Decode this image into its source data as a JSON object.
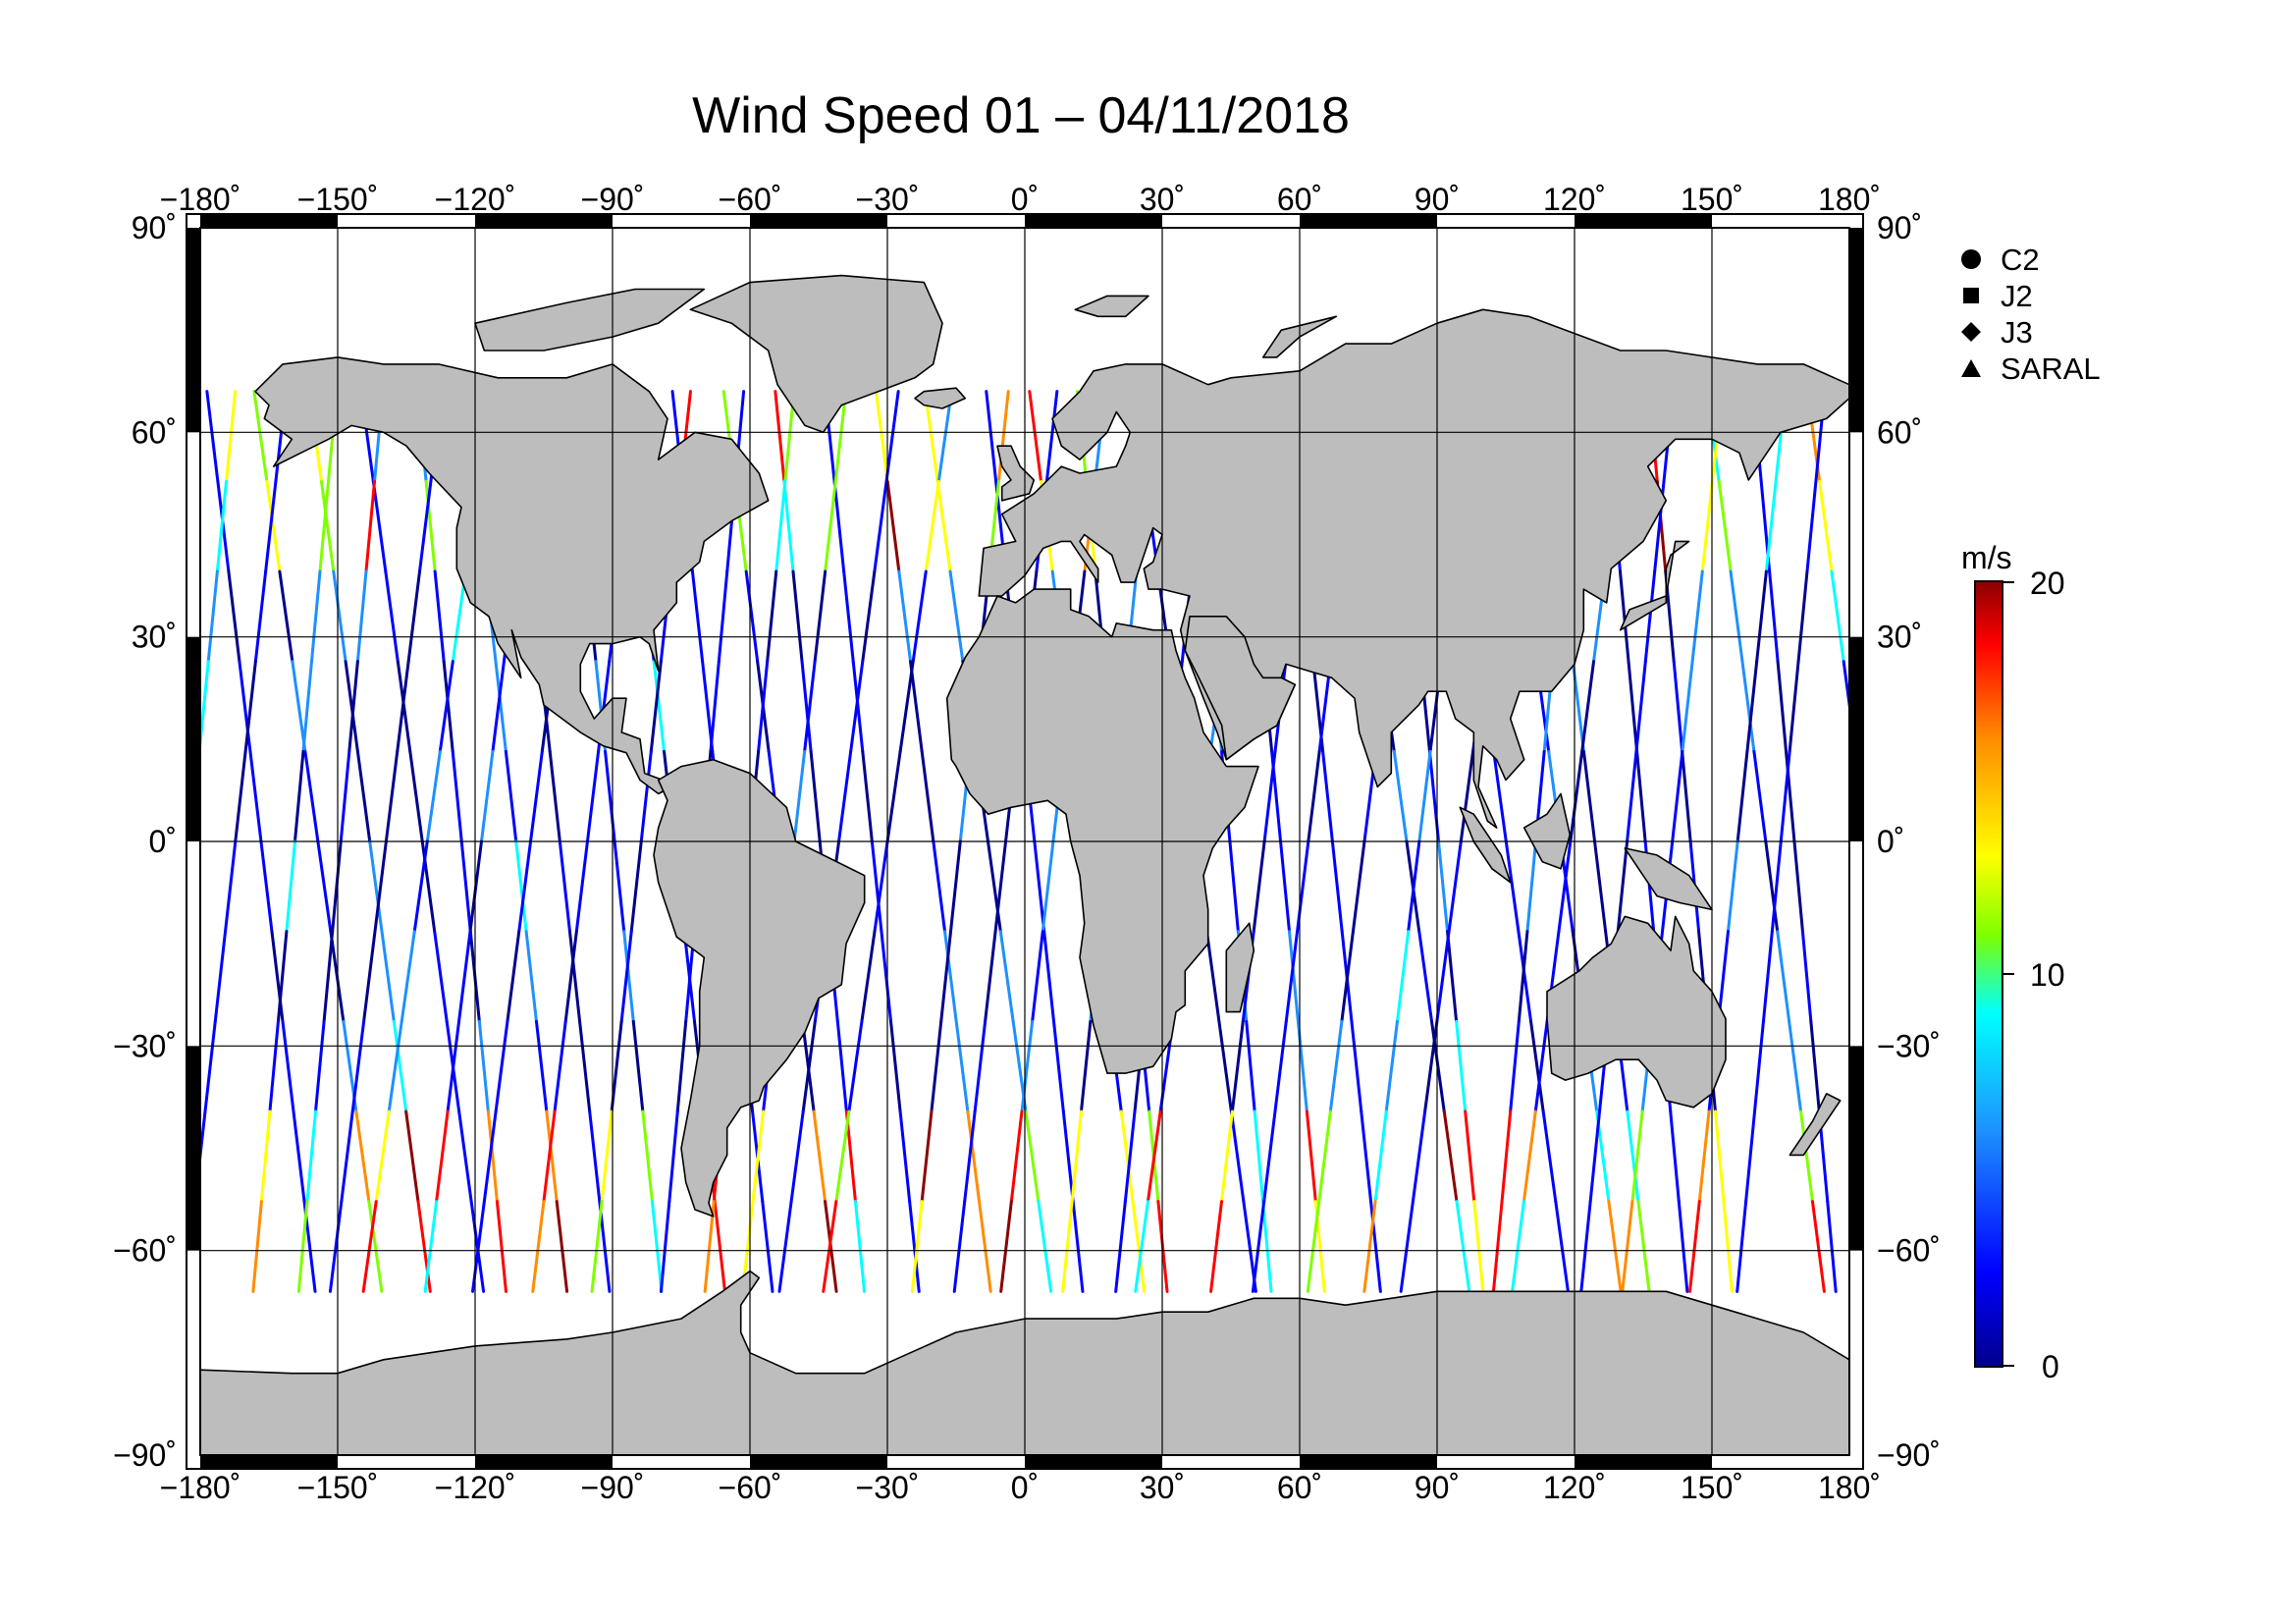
{
  "title": "Wind Speed 01 – 04/11/2018",
  "map": {
    "projection": "equirectangular",
    "lon_range": [
      -180,
      180
    ],
    "lat_range": [
      -90,
      90
    ],
    "lon_ticks": [
      "−180˚",
      "−150˚",
      "−120˚",
      "−90˚",
      "−60˚",
      "−30˚",
      "0˚",
      "30˚",
      "60˚",
      "90˚",
      "120˚",
      "150˚",
      "180˚"
    ],
    "lat_ticks_left": [
      "90˚",
      "60˚",
      "30˚",
      "0˚",
      "−30˚",
      "−60˚",
      "−90˚"
    ],
    "lat_ticks_right": [
      "90˚",
      "60˚",
      "30˚",
      "0˚",
      "−30˚",
      "−60˚",
      "−90˚"
    ],
    "grid": true,
    "land_color": "#bdbdbd",
    "ocean_color": "#ffffff"
  },
  "legend": {
    "items": [
      {
        "label": "C2",
        "icon": "circle-icon"
      },
      {
        "label": "J2",
        "icon": "square-icon"
      },
      {
        "label": "J3",
        "icon": "diamond-icon"
      },
      {
        "label": "SARAL",
        "icon": "triangle-icon"
      }
    ]
  },
  "colorbar": {
    "unit": "m/s",
    "min": 0,
    "max": 20,
    "tick_labels": [
      "20",
      "10",
      "0"
    ],
    "colors": [
      "#8b0000",
      "#ff0000",
      "#ff8c00",
      "#ffff00",
      "#7fff00",
      "#00ffff",
      "#1e90ff",
      "#0000ff",
      "#00008b"
    ]
  },
  "chart_data": {
    "type": "map",
    "variable": "wind speed",
    "unit": "m/s",
    "satellites": [
      "C2",
      "J2",
      "J3",
      "SARAL"
    ],
    "value_range": [
      0,
      20
    ]
  }
}
